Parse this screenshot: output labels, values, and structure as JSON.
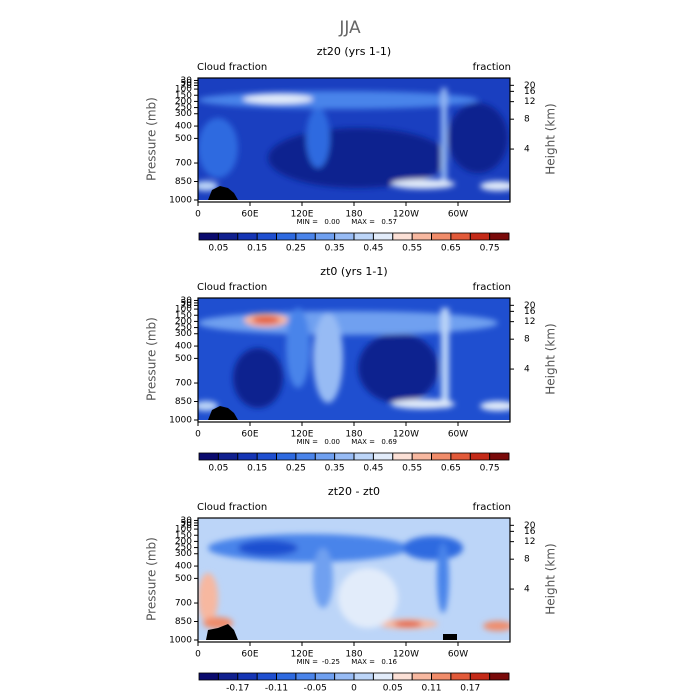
{
  "figure_title": "JJA",
  "chart_data": [
    {
      "type": "contour",
      "title": "zt20 (yrs 1-1)",
      "left_label": "Cloud fraction",
      "right_label": "fraction",
      "ylabel": "Pressure (mb)",
      "y2label": "Height (km)",
      "xlim": [
        0,
        360
      ],
      "xticks": [
        0,
        {
          "value": 60,
          "label": "60E"
        },
        {
          "value": 120,
          "label": "120E"
        },
        180,
        {
          "value": 240,
          "label": "120W"
        },
        {
          "value": 300,
          "label": "60W"
        }
      ],
      "ylim": [
        1000,
        10
      ],
      "yticks": [
        1000,
        850,
        700,
        500,
        400,
        300,
        250,
        200,
        150,
        100,
        70,
        50,
        30
      ],
      "y2ticks": [
        4,
        8,
        12,
        16,
        20
      ],
      "stats": {
        "min_label": "MIN =",
        "min": {
          "value": 0,
          "label": "0.00"
        },
        "max_label": "MAX =",
        "max": 0.57
      },
      "colorbar": {
        "colors": [
          "#0a0a6e",
          "#10208f",
          "#1535b5",
          "#1f4fd0",
          "#2e6ae0",
          "#4a84ea",
          "#6fa0f0",
          "#97bbf4",
          "#bcd5f8",
          "#e2ecfa",
          "#fbe0d6",
          "#f7b8a0",
          "#f08c6a",
          "#e25a3a",
          "#c42a18",
          "#7a0a0a"
        ],
        "levels": [
          0.05,
          0.1,
          0.15,
          0.2,
          0.25,
          0.3,
          0.35,
          0.4,
          0.45,
          0.5,
          0.55,
          0.6,
          0.65,
          0.7,
          0.75
        ],
        "labels": [
          0.05,
          0.15,
          0.25,
          0.35,
          0.45,
          0.55,
          0.65,
          0.75
        ]
      }
    },
    {
      "type": "contour",
      "title": "zt0 (yrs 1-1)",
      "left_label": "Cloud fraction",
      "right_label": "fraction",
      "ylabel": "Pressure (mb)",
      "y2label": "Height (km)",
      "xlim": [
        0,
        360
      ],
      "xticks": [
        0,
        {
          "value": 60,
          "label": "60E"
        },
        {
          "value": 120,
          "label": "120E"
        },
        180,
        {
          "value": 240,
          "label": "120W"
        },
        {
          "value": 300,
          "label": "60W"
        }
      ],
      "ylim": [
        1000,
        10
      ],
      "yticks": [
        1000,
        850,
        700,
        500,
        400,
        300,
        250,
        200,
        150,
        100,
        70,
        50,
        30
      ],
      "y2ticks": [
        4,
        8,
        12,
        16,
        20
      ],
      "stats": {
        "min_label": "MIN =",
        "min": {
          "value": 0,
          "label": "0.00"
        },
        "max_label": "MAX =",
        "max": 0.69
      },
      "colorbar": {
        "colors": [
          "#0a0a6e",
          "#10208f",
          "#1535b5",
          "#1f4fd0",
          "#2e6ae0",
          "#4a84ea",
          "#6fa0f0",
          "#97bbf4",
          "#bcd5f8",
          "#e2ecfa",
          "#fbe0d6",
          "#f7b8a0",
          "#f08c6a",
          "#e25a3a",
          "#c42a18",
          "#7a0a0a"
        ],
        "levels": [
          0.05,
          0.1,
          0.15,
          0.2,
          0.25,
          0.3,
          0.35,
          0.4,
          0.45,
          0.5,
          0.55,
          0.6,
          0.65,
          0.7,
          0.75
        ],
        "labels": [
          0.05,
          0.15,
          0.25,
          0.35,
          0.45,
          0.55,
          0.65,
          0.75
        ]
      }
    },
    {
      "type": "contour",
      "title": "zt20 - zt0",
      "left_label": "Cloud fraction",
      "right_label": "fraction",
      "ylabel": "Pressure (mb)",
      "y2label": "Height (km)",
      "xlim": [
        0,
        360
      ],
      "xticks": [
        0,
        {
          "value": 60,
          "label": "60E"
        },
        {
          "value": 120,
          "label": "120E"
        },
        180,
        {
          "value": 240,
          "label": "120W"
        },
        {
          "value": 300,
          "label": "60W"
        }
      ],
      "ylim": [
        1000,
        10
      ],
      "yticks": [
        1000,
        850,
        700,
        500,
        400,
        300,
        250,
        200,
        150,
        100,
        70,
        50,
        30
      ],
      "y2ticks": [
        4,
        8,
        12,
        16,
        20
      ],
      "stats": {
        "min_label": "MIN =",
        "min": -0.25,
        "max_label": "MAX =",
        "max": 0.16
      },
      "colorbar": {
        "colors": [
          "#0a0a6e",
          "#10208f",
          "#1535b5",
          "#1f4fd0",
          "#2e6ae0",
          "#4a84ea",
          "#6fa0f0",
          "#97bbf4",
          "#bcd5f8",
          "#e2ecfa",
          "#fbe0d6",
          "#f7b8a0",
          "#f08c6a",
          "#e25a3a",
          "#c42a18",
          "#7a0a0a"
        ],
        "levels": [
          -0.2,
          -0.17,
          -0.14,
          -0.11,
          -0.08,
          -0.05,
          -0.02,
          0,
          0.02,
          0.05,
          0.08,
          0.11,
          0.14,
          0.17,
          0.2
        ],
        "labels": [
          -0.17,
          -0.11,
          -0.05,
          0,
          0.05,
          0.11,
          0.17
        ]
      }
    }
  ]
}
